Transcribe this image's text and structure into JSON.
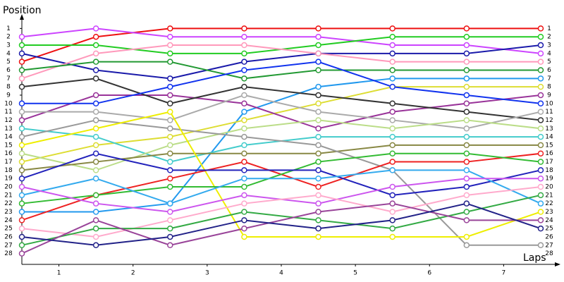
{
  "chart_data": {
    "type": "bump",
    "y_label": "Position",
    "x_label": "Laps",
    "x": [
      0,
      1,
      2,
      3,
      4,
      5,
      6,
      7
    ],
    "xlim": [
      0,
      7.2
    ],
    "xticks": [
      {
        "value": 0.5,
        "label": "1"
      },
      {
        "value": 1.5,
        "label": "2"
      },
      {
        "value": 2.5,
        "label": "3"
      },
      {
        "value": 3.5,
        "label": "4"
      },
      {
        "value": 4.5,
        "label": "5"
      },
      {
        "value": 5.5,
        "label": "6"
      },
      {
        "value": 6.5,
        "label": "7"
      }
    ],
    "ylim": [
      29.3,
      -0.3
    ],
    "yticks": [
      1,
      2,
      3,
      4,
      5,
      6,
      7,
      8,
      9,
      10,
      11,
      12,
      13,
      14,
      15,
      16,
      17,
      18,
      19,
      20,
      21,
      22,
      23,
      24,
      25,
      26,
      27,
      28
    ],
    "series": [
      {
        "color": "#ee1111",
        "values": [
          5,
          2,
          1,
          1,
          1,
          1,
          1,
          1
        ]
      },
      {
        "color": "#cc44ff",
        "values": [
          2,
          1,
          2,
          2,
          2,
          3,
          3,
          4
        ]
      },
      {
        "color": "#22cc22",
        "values": [
          3,
          3,
          4,
          4,
          3,
          2,
          2,
          2
        ]
      },
      {
        "color": "#1a1aaa",
        "values": [
          4,
          6,
          7,
          5,
          4,
          4,
          4,
          3
        ]
      },
      {
        "color": "#ff99bb",
        "values": [
          7,
          4,
          3,
          3,
          4,
          5,
          5,
          5
        ]
      },
      {
        "color": "#229933",
        "values": [
          6,
          5,
          5,
          7,
          6,
          6,
          6,
          6
        ]
      },
      {
        "color": "#2299ee",
        "values": [
          23,
          23,
          22,
          11,
          8,
          7,
          7,
          7
        ]
      },
      {
        "color": "#dddd33",
        "values": [
          17,
          15,
          14,
          12,
          10,
          8,
          8,
          8
        ]
      },
      {
        "color": "#993399",
        "values": [
          12,
          9,
          9,
          10,
          13,
          11,
          10,
          9
        ]
      },
      {
        "color": "#333333",
        "values": [
          8,
          7,
          10,
          8,
          9,
          10,
          11,
          12
        ]
      },
      {
        "color": "#1133ee",
        "values": [
          10,
          10,
          8,
          6,
          5,
          8,
          9,
          10
        ]
      },
      {
        "color": "#aaaaaa",
        "values": [
          11,
          11,
          12,
          9,
          11,
          12,
          13,
          11
        ]
      },
      {
        "color": "#44cccc",
        "values": [
          13,
          14,
          17,
          15,
          14,
          14,
          14,
          14
        ]
      },
      {
        "color": "#bbdd88",
        "values": [
          16,
          18,
          15,
          13,
          12,
          13,
          12,
          13
        ]
      },
      {
        "color": "#888844",
        "values": [
          18,
          17,
          16,
          16,
          16,
          15,
          15,
          15
        ]
      },
      {
        "color": "#999999",
        "values": [
          14,
          12,
          13,
          14,
          15,
          18,
          27,
          27
        ]
      },
      {
        "color": "#eeee00",
        "values": [
          15,
          13,
          11,
          26,
          26,
          26,
          26,
          23
        ]
      },
      {
        "color": "#ee2222",
        "values": [
          24,
          21,
          19,
          17,
          20,
          17,
          17,
          16
        ]
      },
      {
        "color": "#33bb33",
        "values": [
          22,
          21,
          20,
          20,
          17,
          16,
          16,
          17
        ]
      },
      {
        "color": "#2222bb",
        "values": [
          19,
          16,
          18,
          18,
          18,
          21,
          20,
          18
        ]
      },
      {
        "color": "#33aaee",
        "values": [
          21,
          19,
          22,
          19,
          19,
          18,
          18,
          22
        ]
      },
      {
        "color": "#cc55ee",
        "values": [
          20,
          22,
          23,
          21,
          22,
          20,
          19,
          19
        ]
      },
      {
        "color": "#ffaacc",
        "values": [
          25,
          26,
          24,
          22,
          21,
          23,
          21,
          20
        ]
      },
      {
        "color": "#33aa44",
        "values": [
          27,
          25,
          25,
          23,
          24,
          25,
          23,
          21
        ]
      },
      {
        "color": "#994499",
        "values": [
          28,
          24,
          27,
          25,
          23,
          22,
          24,
          24
        ]
      },
      {
        "color": "#222288",
        "values": [
          26,
          27,
          26,
          24,
          25,
          24,
          22,
          25
        ]
      }
    ]
  }
}
